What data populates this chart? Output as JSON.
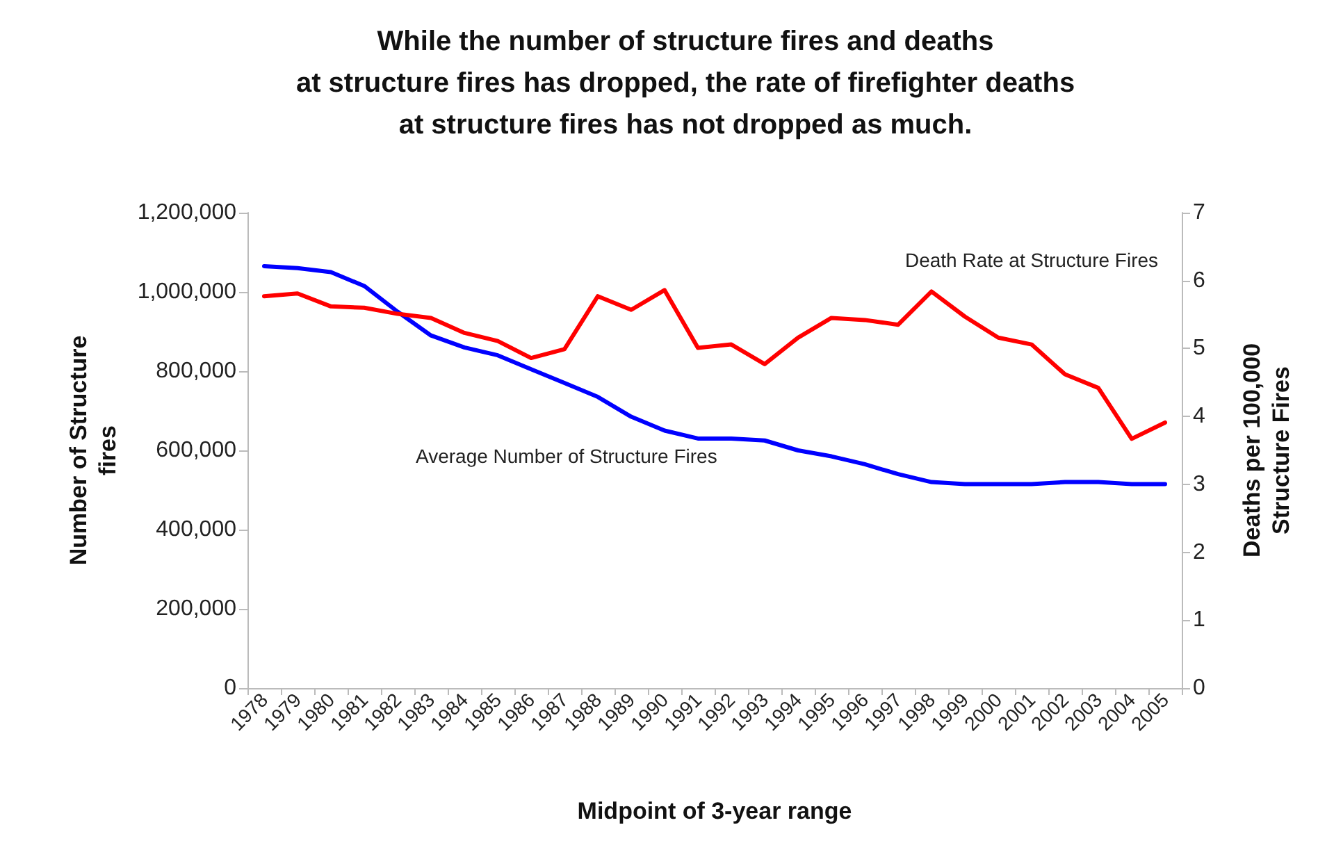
{
  "chart_data": {
    "type": "line",
    "title": "While the number of structure fires and deaths\nat structure fires has dropped, the rate of firefighter deaths\nat structure fires has not dropped as much.",
    "xlabel": "Midpoint of 3-year range",
    "ylabel": "Number of Structure\nfires",
    "y2label": "Deaths per 100,000\nStructure Fires",
    "categories": [
      "1978",
      "1979",
      "1980",
      "1981",
      "1982",
      "1983",
      "1984",
      "1985",
      "1986",
      "1987",
      "1988",
      "1989",
      "1990",
      "1991",
      "1992",
      "1993",
      "1994",
      "1995",
      "1996",
      "1997",
      "1998",
      "1999",
      "2000",
      "2001",
      "2002",
      "2003",
      "2004",
      "2005"
    ],
    "series": [
      {
        "name": "Average Number of Structure Fires",
        "color": "#0000ff",
        "values": [
          1065000,
          1060000,
          1050000,
          1015000,
          950000,
          890000,
          860000,
          840000,
          805000,
          770000,
          735000,
          685000,
          650000,
          630000,
          630000,
          625000,
          600000,
          585000,
          565000,
          540000,
          520000,
          515000,
          515000,
          515000,
          520000,
          520000,
          515000,
          515000
        ]
      },
      {
        "name": "Death Rate at Structure Fires",
        "color": "#ff0000",
        "axis": "y2",
        "values": [
          5.77,
          5.81,
          5.62,
          5.6,
          5.51,
          5.45,
          5.23,
          5.11,
          4.86,
          4.99,
          5.77,
          5.57,
          5.86,
          5.01,
          5.06,
          4.77,
          5.16,
          5.45,
          5.42,
          5.35,
          5.84,
          5.47,
          5.16,
          5.06,
          4.62,
          4.42,
          3.67,
          3.91
        ]
      }
    ],
    "ylim": [
      0,
      1200000
    ],
    "yticks": [
      0,
      {
        "value": 200000,
        "label": "200,000"
      },
      {
        "value": 400000,
        "label": "400,000"
      },
      {
        "value": 600000,
        "label": "600,000"
      },
      {
        "value": 800000,
        "label": "800,000"
      },
      {
        "value": 1000000,
        "label": "1,000,000"
      },
      {
        "value": 1200000,
        "label": "1,200,000"
      }
    ],
    "y2lim": [
      0,
      7
    ],
    "y2ticks": [
      0,
      1,
      2,
      3,
      4,
      5,
      6,
      7
    ],
    "grid": false,
    "legend": false,
    "marker": "none",
    "line_style": "solid"
  }
}
